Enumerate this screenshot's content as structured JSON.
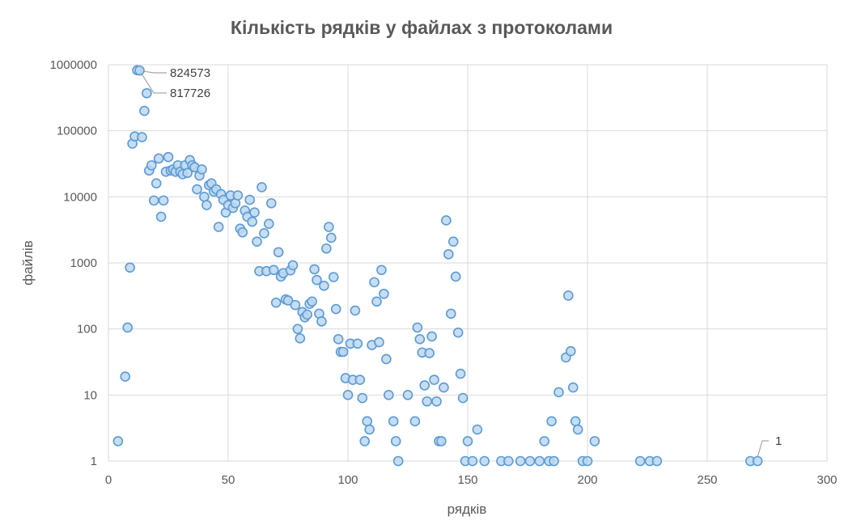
{
  "chart_data": {
    "type": "scatter",
    "title": "Кількість рядків у файлах з протоколами",
    "xlabel": "рядків",
    "ylabel": "файлів",
    "xlim": [
      0,
      300
    ],
    "ylim": [
      1,
      1000000
    ],
    "yscale": "log",
    "grid": true,
    "legend": "none",
    "x_ticks": [
      "0",
      "50",
      "100",
      "150",
      "200",
      "250",
      "300"
    ],
    "y_ticks": [
      "1",
      "10",
      "100",
      "1000",
      "10000",
      "100000",
      "1000000"
    ],
    "colors": {
      "marker_fill": "#bdd7ee",
      "marker_stroke": "#5b9bd5",
      "grid": "#d9d9d9",
      "text": "#595959"
    },
    "annotations": [
      {
        "text": "824573",
        "x": 12,
        "y": 824573
      },
      {
        "text": "817726",
        "x": 13,
        "y": 817726
      },
      {
        "text": "1",
        "x": 271,
        "y": 1
      }
    ],
    "points": [
      [
        4,
        2
      ],
      [
        7,
        19
      ],
      [
        8,
        105
      ],
      [
        9,
        850
      ],
      [
        10,
        64000
      ],
      [
        11,
        82000
      ],
      [
        12,
        824573
      ],
      [
        13,
        817726
      ],
      [
        14,
        80000
      ],
      [
        15,
        200000
      ],
      [
        16,
        370000
      ],
      [
        17,
        25000
      ],
      [
        18,
        30000
      ],
      [
        19,
        8800
      ],
      [
        20,
        16000
      ],
      [
        21,
        38000
      ],
      [
        22,
        5000
      ],
      [
        23,
        8800
      ],
      [
        24,
        24000
      ],
      [
        25,
        40000
      ],
      [
        26,
        25000
      ],
      [
        27,
        26000
      ],
      [
        28,
        24000
      ],
      [
        29,
        30000
      ],
      [
        30,
        24000
      ],
      [
        31,
        22000
      ],
      [
        32,
        30000
      ],
      [
        33,
        23000
      ],
      [
        34,
        36000
      ],
      [
        35,
        30000
      ],
      [
        36,
        28000
      ],
      [
        37,
        13000
      ],
      [
        38,
        21000
      ],
      [
        39,
        26000
      ],
      [
        40,
        10000
      ],
      [
        41,
        7500
      ],
      [
        42,
        15000
      ],
      [
        43,
        16000
      ],
      [
        44,
        12000
      ],
      [
        45,
        13000
      ],
      [
        46,
        3500
      ],
      [
        47,
        11000
      ],
      [
        48,
        9000
      ],
      [
        49,
        5800
      ],
      [
        50,
        7500
      ],
      [
        51,
        10500
      ],
      [
        52,
        6800
      ],
      [
        53,
        8000
      ],
      [
        54,
        10500
      ],
      [
        55,
        3300
      ],
      [
        56,
        2900
      ],
      [
        57,
        6200
      ],
      [
        58,
        5000
      ],
      [
        59,
        9000
      ],
      [
        60,
        4200
      ],
      [
        61,
        5800
      ],
      [
        62,
        2100
      ],
      [
        63,
        750
      ],
      [
        64,
        14000
      ],
      [
        65,
        2800
      ],
      [
        66,
        750
      ],
      [
        67,
        3900
      ],
      [
        68,
        8000
      ],
      [
        69,
        780
      ],
      [
        70,
        250
      ],
      [
        71,
        1450
      ],
      [
        72,
        620
      ],
      [
        73,
        700
      ],
      [
        74,
        280
      ],
      [
        75,
        270
      ],
      [
        76,
        770
      ],
      [
        77,
        920
      ],
      [
        78,
        230
      ],
      [
        79,
        100
      ],
      [
        80,
        72
      ],
      [
        81,
        180
      ],
      [
        82,
        150
      ],
      [
        83,
        165
      ],
      [
        84,
        240
      ],
      [
        85,
        260
      ],
      [
        86,
        800
      ],
      [
        87,
        550
      ],
      [
        88,
        170
      ],
      [
        89,
        130
      ],
      [
        90,
        450
      ],
      [
        91,
        1650
      ],
      [
        92,
        3500
      ],
      [
        93,
        2400
      ],
      [
        94,
        610
      ],
      [
        95,
        200
      ],
      [
        96,
        70
      ],
      [
        97,
        45
      ],
      [
        98,
        45
      ],
      [
        99,
        18
      ],
      [
        100,
        10
      ],
      [
        101,
        60
      ],
      [
        102,
        17
      ],
      [
        103,
        190
      ],
      [
        104,
        60
      ],
      [
        105,
        17
      ],
      [
        106,
        9
      ],
      [
        107,
        2
      ],
      [
        108,
        4
      ],
      [
        109,
        3
      ],
      [
        110,
        57
      ],
      [
        111,
        510
      ],
      [
        112,
        260
      ],
      [
        113,
        63
      ],
      [
        114,
        780
      ],
      [
        115,
        340
      ],
      [
        116,
        35
      ],
      [
        117,
        10
      ],
      [
        119,
        4
      ],
      [
        120,
        2
      ],
      [
        121,
        1
      ],
      [
        125,
        10
      ],
      [
        128,
        4
      ],
      [
        129,
        105
      ],
      [
        130,
        70
      ],
      [
        131,
        44
      ],
      [
        132,
        14
      ],
      [
        133,
        8
      ],
      [
        134,
        43
      ],
      [
        135,
        77
      ],
      [
        136,
        17
      ],
      [
        137,
        8
      ],
      [
        138,
        2
      ],
      [
        139,
        2
      ],
      [
        140,
        13
      ],
      [
        141,
        4400
      ],
      [
        142,
        1350
      ],
      [
        143,
        170
      ],
      [
        144,
        2100
      ],
      [
        145,
        620
      ],
      [
        146,
        88
      ],
      [
        147,
        21
      ],
      [
        148,
        9
      ],
      [
        149,
        1
      ],
      [
        150,
        2
      ],
      [
        152,
        1
      ],
      [
        154,
        3
      ],
      [
        157,
        1
      ],
      [
        164,
        1
      ],
      [
        167,
        1
      ],
      [
        172,
        1
      ],
      [
        176,
        1
      ],
      [
        180,
        1
      ],
      [
        182,
        2
      ],
      [
        184,
        1
      ],
      [
        185,
        4
      ],
      [
        186,
        1
      ],
      [
        188,
        11
      ],
      [
        191,
        37
      ],
      [
        192,
        320
      ],
      [
        193,
        46
      ],
      [
        194,
        13
      ],
      [
        195,
        4
      ],
      [
        196,
        3
      ],
      [
        198,
        1
      ],
      [
        200,
        1
      ],
      [
        203,
        2
      ],
      [
        222,
        1
      ],
      [
        226,
        1
      ],
      [
        229,
        1
      ],
      [
        268,
        1
      ],
      [
        271,
        1
      ]
    ]
  }
}
